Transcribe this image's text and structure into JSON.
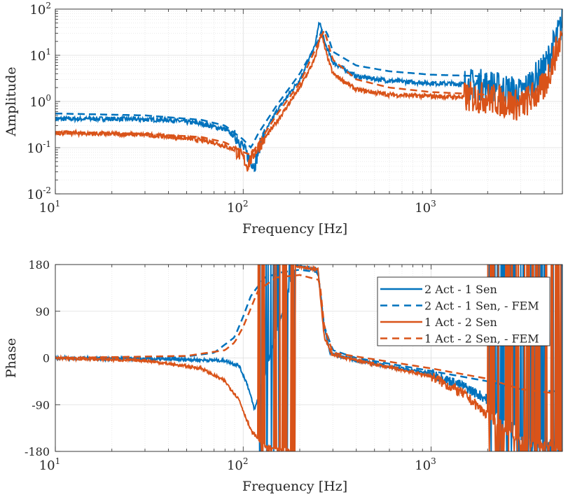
{
  "chart_data": [
    {
      "type": "line",
      "xscale": "log",
      "yscale": "log",
      "xlabel": "Frequency [Hz]",
      "ylabel": "Amplitude",
      "xlim": [
        10,
        5000
      ],
      "ylim": [
        0.01,
        100
      ],
      "xticks": [
        {
          "base": "10",
          "exp": "1"
        },
        {
          "base": "10",
          "exp": "2"
        },
        {
          "base": "10",
          "exp": "3"
        }
      ],
      "yticks": [
        {
          "base": "10",
          "exp": "-2"
        },
        {
          "base": "10",
          "exp": "-1"
        },
        {
          "base": "10",
          "exp": "0"
        },
        {
          "base": "10",
          "exp": "1"
        },
        {
          "base": "10",
          "exp": "2"
        }
      ],
      "grid": true,
      "series": [
        {
          "name": "2 Act - 1 Sen",
          "color": "#0072BD",
          "style": "solid",
          "measured": true,
          "x": [
            10,
            20,
            40,
            60,
            80,
            95,
            105,
            115,
            125,
            150,
            200,
            240,
            255,
            270,
            300,
            400,
            600,
            1000,
            2000,
            3000,
            4000,
            5000
          ],
          "y": [
            0.42,
            0.42,
            0.4,
            0.33,
            0.25,
            0.15,
            0.07,
            0.04,
            0.15,
            0.6,
            3,
            15,
            55,
            20,
            7,
            3.5,
            2.8,
            2.5,
            2.3,
            1.5,
            5,
            50
          ]
        },
        {
          "name": "2 Act - 1 Sen, - FEM",
          "color": "#0072BD",
          "style": "dashed",
          "x": [
            10,
            30,
            60,
            80,
            100,
            110,
            120,
            150,
            200,
            250,
            265,
            280,
            300,
            400,
            600,
            1000,
            2000
          ],
          "y": [
            0.55,
            0.5,
            0.4,
            0.3,
            0.15,
            0.1,
            0.2,
            0.8,
            4,
            20,
            40,
            30,
            12,
            6,
            4.5,
            3.8,
            3.5
          ]
        },
        {
          "name": "1 Act - 2 Sen",
          "color": "#D95319",
          "style": "solid",
          "measured": true,
          "x": [
            10,
            30,
            50,
            70,
            90,
            100,
            105,
            115,
            150,
            200,
            240,
            260,
            275,
            300,
            400,
            600,
            1000,
            2000,
            3000,
            4000,
            5000
          ],
          "y": [
            0.21,
            0.19,
            0.16,
            0.13,
            0.09,
            0.06,
            0.04,
            0.08,
            0.35,
            2,
            8,
            30,
            12,
            4,
            1.8,
            1.4,
            1.3,
            1.2,
            0.8,
            2,
            30
          ]
        },
        {
          "name": "1 Act - 2 Sen, - FEM",
          "color": "#D95319",
          "style": "dashed",
          "x": [
            10,
            30,
            60,
            80,
            100,
            110,
            120,
            150,
            200,
            260,
            270,
            300,
            400,
            600,
            1000,
            2000
          ],
          "y": [
            0.22,
            0.2,
            0.17,
            0.13,
            0.08,
            0.07,
            0.12,
            0.5,
            2.5,
            25,
            35,
            8,
            3,
            2,
            1.6,
            1.4
          ]
        }
      ]
    },
    {
      "type": "line",
      "xscale": "log",
      "xlabel": "Frequency [Hz]",
      "ylabel": "Phase",
      "xlim": [
        10,
        5000
      ],
      "ylim": [
        -180,
        180
      ],
      "xticks": [
        {
          "base": "10",
          "exp": "1"
        },
        {
          "base": "10",
          "exp": "2"
        },
        {
          "base": "10",
          "exp": "3"
        }
      ],
      "yticks": [
        "-180",
        "-90",
        "0",
        "90",
        "180"
      ],
      "grid": true,
      "legend": "top-right",
      "series": [
        {
          "name": "2 Act - 1 Sen",
          "color": "#0072BD",
          "style": "solid",
          "measured": true,
          "x": [
            10,
            50,
            80,
            95,
            105,
            115,
            190,
            250,
            270,
            290,
            400,
            1000,
            1500,
            2000,
            3000,
            5000
          ],
          "y": [
            0,
            -3,
            -5,
            -15,
            -50,
            -100,
            178,
            170,
            60,
            10,
            -5,
            -30,
            -55,
            -80,
            -150,
            -170
          ]
        },
        {
          "name": "2 Act - 1 Sen, - FEM",
          "color": "#0072BD",
          "style": "dashed",
          "x": [
            10,
            50,
            70,
            90,
            100,
            110,
            130,
            160,
            200,
            250,
            270,
            300,
            400,
            1000,
            2000,
            3000,
            5000
          ],
          "y": [
            0,
            3,
            10,
            40,
            80,
            120,
            155,
            165,
            170,
            165,
            60,
            15,
            0,
            -25,
            -45,
            -60,
            -65
          ]
        },
        {
          "name": "1 Act - 2 Sen",
          "color": "#D95319",
          "style": "solid",
          "measured": true,
          "x": [
            10,
            30,
            60,
            80,
            95,
            110,
            130,
            180,
            190,
            250,
            270,
            300,
            1000,
            1500,
            2000,
            3000,
            5000
          ],
          "y": [
            0,
            -5,
            -20,
            -45,
            -80,
            -140,
            -170,
            -178,
            178,
            170,
            40,
            5,
            -35,
            -70,
            -110,
            -160,
            -175
          ]
        },
        {
          "name": "1 Act - 2 Sen, - FEM",
          "color": "#D95319",
          "style": "dashed",
          "x": [
            10,
            50,
            80,
            90,
            100,
            120,
            150,
            200,
            255,
            270,
            300,
            1000,
            2000,
            3000,
            5000
          ],
          "y": [
            0,
            4,
            15,
            30,
            60,
            130,
            155,
            160,
            150,
            60,
            10,
            -20,
            -40,
            -60,
            -70
          ]
        }
      ]
    }
  ]
}
